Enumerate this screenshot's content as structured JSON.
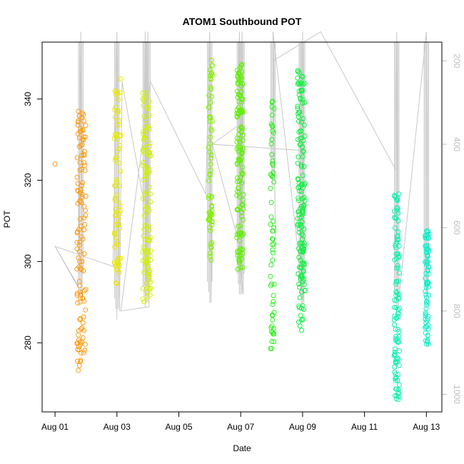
{
  "chart_data": {
    "type": "scatter",
    "title": "ATOM1 Southbound POT",
    "xlabel": "Date",
    "ylabel": "POT",
    "y2label": "",
    "xlim": [
      "2023-07-31T14:00",
      "2023-08-13T12:00"
    ],
    "ylim": [
      263,
      354
    ],
    "y2lim": [
      1042,
      155
    ],
    "x_ticks": [
      {
        "date": "2023-08-01",
        "label": "Aug 01"
      },
      {
        "date": "2023-08-03",
        "label": "Aug 03"
      },
      {
        "date": "2023-08-05",
        "label": "Aug 05"
      },
      {
        "date": "2023-08-07",
        "label": "Aug 07"
      },
      {
        "date": "2023-08-09",
        "label": "Aug 09"
      },
      {
        "date": "2023-08-11",
        "label": "Aug 11"
      },
      {
        "date": "2023-08-13",
        "label": "Aug 13"
      }
    ],
    "y_ticks": [
      280,
      300,
      320,
      340
    ],
    "y2_ticks": [
      200,
      400,
      600,
      800,
      1000
    ],
    "colors": {
      "depth_line": "#c8c8c8",
      "axis": "#000000",
      "right_axis": "#bebebe"
    },
    "depth_track": [
      {
        "date": "2023-08-01T00:00",
        "depth": 645
      },
      {
        "date": "2023-08-01T18:00",
        "depth": 740
      },
      {
        "date": "2023-08-01T20:00",
        "depth": 130
      },
      {
        "date": "2023-08-01T21:00",
        "depth": 760
      },
      {
        "date": "2023-08-01T00:00",
        "depth": 645
      },
      {
        "date": "2023-08-02T21:00",
        "depth": 693
      },
      {
        "date": "2023-08-03T00:00",
        "depth": 130
      },
      {
        "date": "2023-08-03T02:00",
        "depth": 800
      },
      {
        "date": "2023-08-03T04:00",
        "depth": 250
      },
      {
        "date": "2023-08-03T21:00",
        "depth": 540
      },
      {
        "date": "2023-08-03T22:00",
        "depth": 130
      },
      {
        "date": "2023-08-03T23:00",
        "depth": 780
      },
      {
        "date": "2023-08-04T00:00",
        "depth": 130
      },
      {
        "date": "2023-08-04T01:00",
        "depth": 790
      },
      {
        "date": "2023-08-03T03:00",
        "depth": 800
      },
      {
        "date": "2023-08-04T02:00",
        "depth": 250
      },
      {
        "date": "2023-08-05T21:00",
        "depth": 520
      },
      {
        "date": "2023-08-06T00:00",
        "depth": 130
      },
      {
        "date": "2023-08-06T01:00",
        "depth": 780
      },
      {
        "date": "2023-08-06T02:00",
        "depth": 400
      },
      {
        "date": "2023-08-06T22:00",
        "depth": 355
      },
      {
        "date": "2023-08-06T23:00",
        "depth": 130
      },
      {
        "date": "2023-08-07T00:00",
        "depth": 740
      },
      {
        "date": "2023-08-07T01:00",
        "depth": 130
      },
      {
        "date": "2023-08-07T02:00",
        "depth": 760
      },
      {
        "date": "2023-08-06T22:00",
        "depth": 630
      },
      {
        "date": "2023-08-06T02:00",
        "depth": 400
      },
      {
        "date": "2023-08-08T23:00",
        "depth": 415
      },
      {
        "date": "2023-08-09T00:00",
        "depth": 130
      },
      {
        "date": "2023-08-09T01:00",
        "depth": 780
      },
      {
        "date": "2023-08-08T01:00",
        "depth": 130
      },
      {
        "date": "2023-08-08T03:00",
        "depth": 650
      },
      {
        "date": "2023-08-08T01:00",
        "depth": 200
      },
      {
        "date": "2023-08-09T14:00",
        "depth": 130
      },
      {
        "date": "2023-08-12T00:00",
        "depth": 460
      },
      {
        "date": "2023-08-12T01:00",
        "depth": 130
      },
      {
        "date": "2023-08-12T02:00",
        "depth": 790
      },
      {
        "date": "2023-08-13T00:00",
        "depth": 130
      },
      {
        "date": "2023-08-13T01:00",
        "depth": 760
      }
    ],
    "depth_spikes": [
      {
        "date": "2023-08-01T20:00",
        "top": 155,
        "bottom": 760
      },
      {
        "date": "2023-08-03T00:00",
        "top": 155,
        "bottom": 820
      },
      {
        "date": "2023-08-03T22:00",
        "top": 155,
        "bottom": 790
      },
      {
        "date": "2023-08-04T00:00",
        "top": 155,
        "bottom": 780
      },
      {
        "date": "2023-08-06T00:00",
        "top": 155,
        "bottom": 780
      },
      {
        "date": "2023-08-06T23:00",
        "top": 155,
        "bottom": 760
      },
      {
        "date": "2023-08-07T00:00",
        "top": 155,
        "bottom": 760
      },
      {
        "date": "2023-08-07T01:00",
        "top": 155,
        "bottom": 760
      },
      {
        "date": "2023-08-08T01:00",
        "top": 155,
        "bottom": 500
      },
      {
        "date": "2023-08-08T23:00",
        "top": 155,
        "bottom": 790
      },
      {
        "date": "2023-08-09T00:00",
        "top": 155,
        "bottom": 790
      },
      {
        "date": "2023-08-12T01:00",
        "top": 155,
        "bottom": 800
      },
      {
        "date": "2023-08-13T00:00",
        "top": 155,
        "bottom": 780
      }
    ],
    "series": [
      {
        "start": "2023-08-01T00:00",
        "end": "2023-08-01T00:00",
        "count": 1,
        "pmin": 324,
        "pmax": 324,
        "color": "#ff8c00",
        "seed": 1
      },
      {
        "start": "2023-08-01T17:00",
        "end": "2023-08-02T00:00",
        "count": 120,
        "pmin": 272,
        "pmax": 337,
        "color": "#ff9a10",
        "seed": 2
      },
      {
        "start": "2023-08-02T22:00",
        "end": "2023-08-03T03:00",
        "count": 75,
        "pmin": 294,
        "pmax": 345,
        "color": "#e8e800",
        "seed": 3
      },
      {
        "start": "2023-08-03T20:00",
        "end": "2023-08-04T02:00",
        "count": 110,
        "pmin": 288,
        "pmax": 342,
        "color": "#d2f000",
        "seed": 4
      },
      {
        "start": "2023-08-05T23:00",
        "end": "2023-08-06T02:00",
        "count": 65,
        "pmin": 300,
        "pmax": 350,
        "color": "#7ff000",
        "seed": 5
      },
      {
        "start": "2023-08-06T21:00",
        "end": "2023-08-07T02:00",
        "count": 140,
        "pmin": 298,
        "pmax": 349,
        "color": "#5ef000",
        "seed": 6
      },
      {
        "start": "2023-08-07T23:00",
        "end": "2023-08-08T02:00",
        "count": 60,
        "pmin": 277,
        "pmax": 341,
        "color": "#2ef020",
        "seed": 7
      },
      {
        "start": "2023-08-08T20:00",
        "end": "2023-08-09T02:00",
        "count": 150,
        "pmin": 283,
        "pmax": 348,
        "color": "#10f040",
        "seed": 8
      },
      {
        "start": "2023-08-11T23:00",
        "end": "2023-08-12T03:00",
        "count": 110,
        "pmin": 265,
        "pmax": 317,
        "color": "#10f0b0",
        "seed": 9
      },
      {
        "start": "2023-08-12T23:00",
        "end": "2023-08-13T02:00",
        "count": 80,
        "pmin": 279,
        "pmax": 308,
        "color": "#10f0c8",
        "seed": 10
      }
    ]
  }
}
